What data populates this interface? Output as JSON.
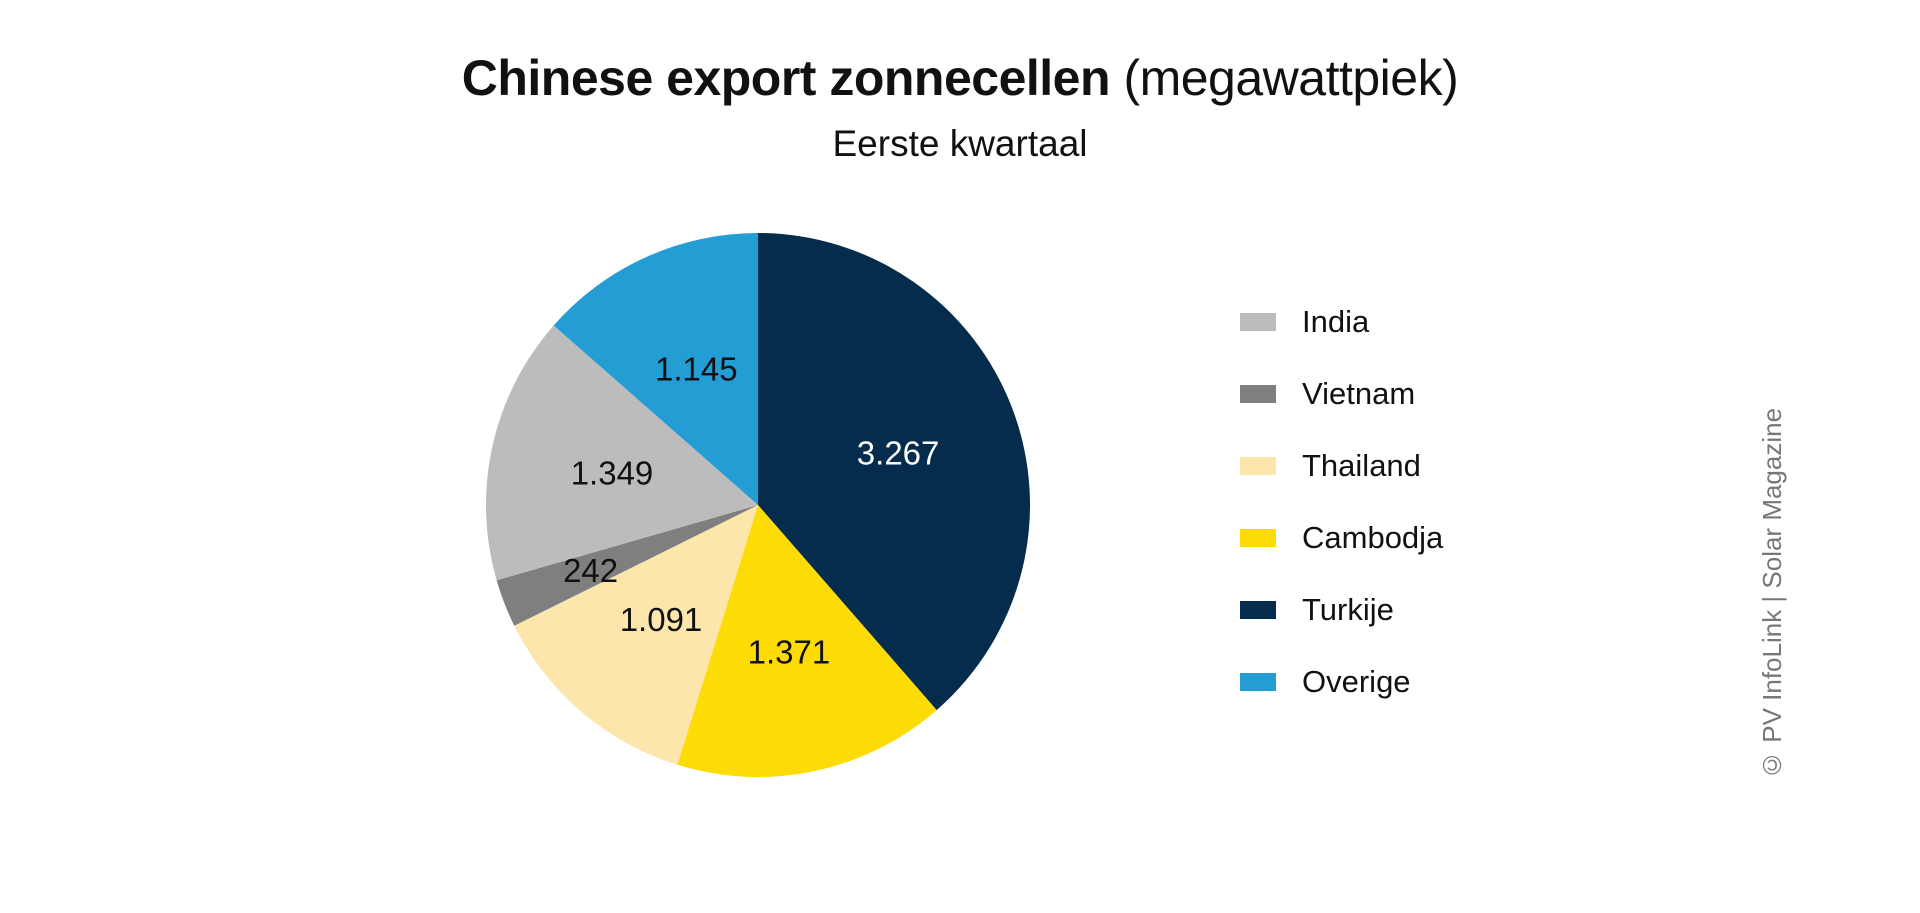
{
  "chart_data": {
    "type": "pie",
    "title": "Chinese export zonnecellen",
    "title_unit": "(megawattpiek)",
    "subtitle": "Eerste kwartaal",
    "slices": [
      {
        "name": "Turkije",
        "value": 3267,
        "label": "3.267",
        "color": "#052c4c",
        "label_color": "#ffffff"
      },
      {
        "name": "Cambodja",
        "value": 1371,
        "label": "1.371",
        "color": "#fcdc04",
        "label_color": "#111111"
      },
      {
        "name": "Thailand",
        "value": 1091,
        "label": "1.091",
        "color": "#fde6ac",
        "label_color": "#111111"
      },
      {
        "name": "Vietnam",
        "value": 242,
        "label": "242",
        "color": "#7f7f7f",
        "label_color": "#111111"
      },
      {
        "name": "India",
        "value": 1349,
        "label": "1.349",
        "color": "#bcbcbc",
        "label_color": "#111111"
      },
      {
        "name": "Overige",
        "value": 1145,
        "label": "1.145",
        "color": "#249cd4",
        "label_color": "#111111"
      }
    ],
    "start_angle": "12 o'clock",
    "direction": "clockwise",
    "legend": {
      "placement": "right",
      "entries": [
        {
          "name": "India",
          "color": "#bcbcbc"
        },
        {
          "name": "Vietnam",
          "color": "#7f7f7f"
        },
        {
          "name": "Thailand",
          "color": "#fde6ac"
        },
        {
          "name": "Cambodja",
          "color": "#fcdc04"
        },
        {
          "name": "Turkije",
          "color": "#052c4c"
        },
        {
          "name": "Overige",
          "color": "#249cd4"
        }
      ]
    }
  },
  "credit": "© PV InfoLink | Solar Magazine"
}
